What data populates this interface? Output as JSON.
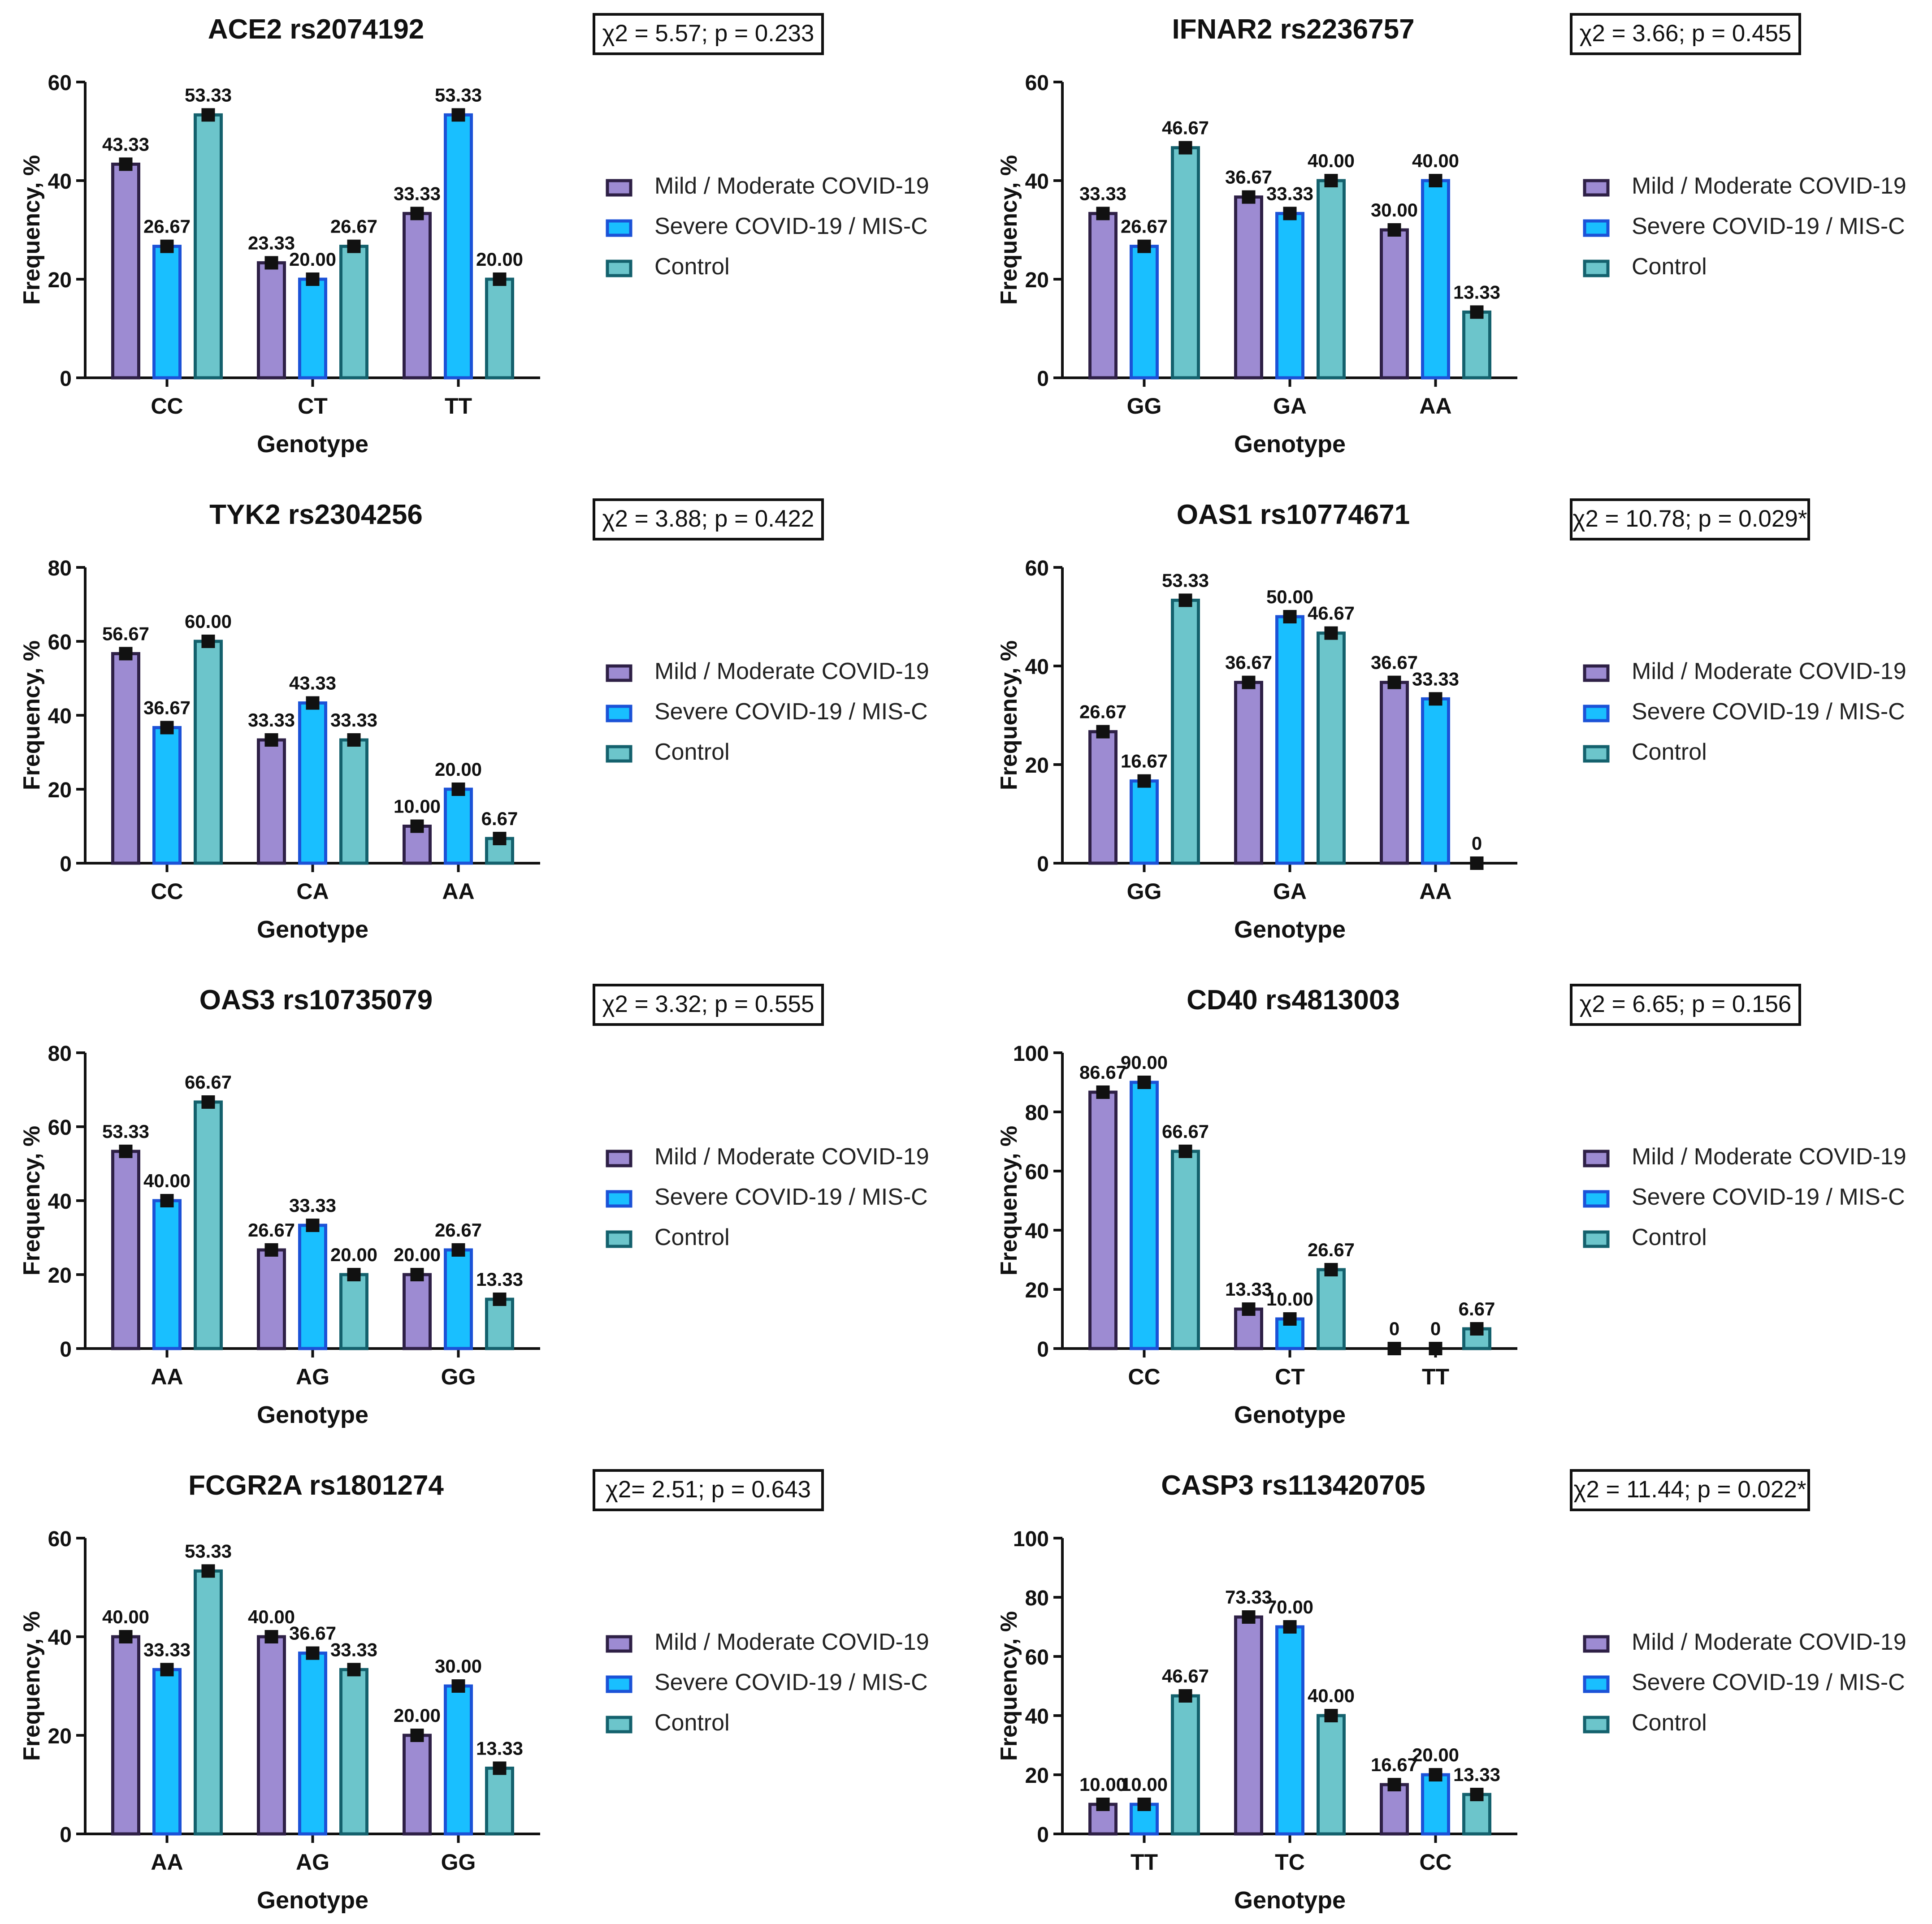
{
  "legend_labels": [
    "Mild / Moderate COVID-19",
    "Severe COVID-19 / MIS-C",
    "Control"
  ],
  "colors": {
    "mild_fill": "#9D8BD2",
    "mild_stroke": "#2E2046",
    "severe_fill": "#19BFFF",
    "severe_stroke": "#1B52D7",
    "control_fill": "#6CC5CB",
    "control_stroke": "#14616D",
    "axis": "#111111",
    "text": "#111111"
  },
  "chart_data": [
    {
      "type": "bar",
      "title": "ACE2 rs2074192",
      "stat": "χ2 = 5.57; p = 0.233",
      "xlabel": "Genotype",
      "ylabel": "Frequency, %",
      "ylim": [
        0,
        60
      ],
      "yticks": [
        "0",
        "20",
        "40",
        "60"
      ],
      "categories": [
        "CC",
        "CT",
        "TT"
      ],
      "series": [
        {
          "name": "Mild / Moderate COVID-19",
          "values": [
            43.33,
            23.33,
            33.33
          ],
          "labels": [
            "43.33",
            "23.33",
            "33.33"
          ]
        },
        {
          "name": "Severe COVID-19 / MIS-C",
          "values": [
            26.67,
            20.0,
            53.33
          ],
          "labels": [
            "26.67",
            "20.00",
            "53.33"
          ]
        },
        {
          "name": "Control",
          "values": [
            53.33,
            26.67,
            20.0
          ],
          "labels": [
            "53.33",
            "26.67",
            "20.00"
          ]
        }
      ]
    },
    {
      "type": "bar",
      "title": "IFNAR2 rs2236757",
      "stat": "χ2 = 3.66; p = 0.455",
      "xlabel": "Genotype",
      "ylabel": "Frequency, %",
      "ylim": [
        0,
        60
      ],
      "yticks": [
        "0",
        "20",
        "40",
        "60"
      ],
      "categories": [
        "GG",
        "GA",
        "AA"
      ],
      "series": [
        {
          "name": "Mild / Moderate COVID-19",
          "values": [
            33.33,
            36.67,
            30.0
          ],
          "labels": [
            "33.33",
            "36.67",
            "30.00"
          ]
        },
        {
          "name": "Severe COVID-19 / MIS-C",
          "values": [
            26.67,
            33.33,
            40.0
          ],
          "labels": [
            "26.67",
            "33.33",
            "40.00"
          ]
        },
        {
          "name": "Control",
          "values": [
            46.67,
            40.0,
            13.33
          ],
          "labels": [
            "46.67",
            "40.00",
            "13.33"
          ]
        }
      ]
    },
    {
      "type": "bar",
      "title": "TYK2 rs2304256",
      "stat": "χ2 = 3.88; p = 0.422",
      "xlabel": "Genotype",
      "ylabel": "Frequency, %",
      "ylim": [
        0,
        80
      ],
      "yticks": [
        "0",
        "20",
        "40",
        "60",
        "80"
      ],
      "categories": [
        "CC",
        "CA",
        "AA"
      ],
      "series": [
        {
          "name": "Mild / Moderate COVID-19",
          "values": [
            56.67,
            33.33,
            10.0
          ],
          "labels": [
            "56.67",
            "33.33",
            "10.00"
          ]
        },
        {
          "name": "Severe COVID-19 / MIS-C",
          "values": [
            36.67,
            43.33,
            20.0
          ],
          "labels": [
            "36.67",
            "43.33",
            "20.00"
          ]
        },
        {
          "name": "Control",
          "values": [
            60.0,
            33.33,
            6.67
          ],
          "labels": [
            "60.00",
            "33.33",
            "6.67"
          ]
        }
      ]
    },
    {
      "type": "bar",
      "title": "OAS1 rs10774671",
      "stat": "χ2 = 10.78; p = 0.029*",
      "xlabel": "Genotype",
      "ylabel": "Frequency, %",
      "ylim": [
        0,
        60
      ],
      "yticks": [
        "0",
        "20",
        "40",
        "60"
      ],
      "categories": [
        "GG",
        "GA",
        "AA"
      ],
      "series": [
        {
          "name": "Mild / Moderate COVID-19",
          "values": [
            26.67,
            36.67,
            36.67
          ],
          "labels": [
            "26.67",
            "36.67",
            "36.67"
          ]
        },
        {
          "name": "Severe COVID-19 / MIS-C",
          "values": [
            16.67,
            50.0,
            33.33
          ],
          "labels": [
            "16.67",
            "50.00",
            "33.33"
          ]
        },
        {
          "name": "Control",
          "values": [
            53.33,
            46.67,
            0
          ],
          "labels": [
            "53.33",
            "46.67",
            "0"
          ]
        }
      ]
    },
    {
      "type": "bar",
      "title": "OAS3 rs10735079",
      "stat": "χ2 = 3.32; p = 0.555",
      "xlabel": "Genotype",
      "ylabel": "Frequency, %",
      "ylim": [
        0,
        80
      ],
      "yticks": [
        "0",
        "20",
        "40",
        "60",
        "80"
      ],
      "categories": [
        "AA",
        "AG",
        "GG"
      ],
      "series": [
        {
          "name": "Mild / Moderate COVID-19",
          "values": [
            53.33,
            26.67,
            20.0
          ],
          "labels": [
            "53.33",
            "26.67",
            "20.00"
          ]
        },
        {
          "name": "Severe COVID-19 / MIS-C",
          "values": [
            40.0,
            33.33,
            26.67
          ],
          "labels": [
            "40.00",
            "33.33",
            "26.67"
          ]
        },
        {
          "name": "Control",
          "values": [
            66.67,
            20.0,
            13.33
          ],
          "labels": [
            "66.67",
            "20.00",
            "13.33"
          ]
        }
      ]
    },
    {
      "type": "bar",
      "title": "CD40 rs4813003",
      "stat": "χ2 = 6.65; p = 0.156",
      "xlabel": "Genotype",
      "ylabel": "Frequency, %",
      "ylim": [
        0,
        100
      ],
      "yticks": [
        "0",
        "20",
        "40",
        "60",
        "80",
        "100"
      ],
      "categories": [
        "CC",
        "CT",
        "TT"
      ],
      "series": [
        {
          "name": "Mild / Moderate COVID-19",
          "values": [
            86.67,
            13.33,
            0
          ],
          "labels": [
            "86.67",
            "13.33",
            "0"
          ]
        },
        {
          "name": "Severe COVID-19 / MIS-C",
          "values": [
            90.0,
            10.0,
            0
          ],
          "labels": [
            "90.00",
            "10.00",
            "0"
          ]
        },
        {
          "name": "Control",
          "values": [
            66.67,
            26.67,
            6.67
          ],
          "labels": [
            "66.67",
            "26.67",
            "6.67"
          ]
        }
      ]
    },
    {
      "type": "bar",
      "title": "FCGR2A rs1801274",
      "stat": "χ2= 2.51; p = 0.643",
      "xlabel": "Genotype",
      "ylabel": "Frequency, %",
      "ylim": [
        0,
        60
      ],
      "yticks": [
        "0",
        "20",
        "40",
        "60"
      ],
      "categories": [
        "AA",
        "AG",
        "GG"
      ],
      "series": [
        {
          "name": "Mild / Moderate COVID-19",
          "values": [
            40.0,
            40.0,
            20.0
          ],
          "labels": [
            "40.00",
            "40.00",
            "20.00"
          ]
        },
        {
          "name": "Severe COVID-19 / MIS-C",
          "values": [
            33.33,
            36.67,
            30.0
          ],
          "labels": [
            "33.33",
            "36.67",
            "30.00"
          ]
        },
        {
          "name": "Control",
          "values": [
            53.33,
            33.33,
            13.33
          ],
          "labels": [
            "53.33",
            "33.33",
            "13.33"
          ]
        }
      ]
    },
    {
      "type": "bar",
      "title": "CASP3 rs113420705",
      "stat": "χ2 = 11.44; p = 0.022*",
      "xlabel": "Genotype",
      "ylabel": "Frequency, %",
      "ylim": [
        0,
        100
      ],
      "yticks": [
        "0",
        "20",
        "40",
        "60",
        "80",
        "100"
      ],
      "categories": [
        "TT",
        "TC",
        "CC"
      ],
      "series": [
        {
          "name": "Mild / Moderate COVID-19",
          "values": [
            10.0,
            73.33,
            16.67
          ],
          "labels": [
            "10.00",
            "73.33",
            "16.67"
          ]
        },
        {
          "name": "Severe COVID-19 / MIS-C",
          "values": [
            10.0,
            70.0,
            20.0
          ],
          "labels": [
            "10.00",
            "70.00",
            "20.00"
          ]
        },
        {
          "name": "Control",
          "values": [
            46.67,
            40.0,
            13.33
          ],
          "labels": [
            "46.67",
            "40.00",
            "13.33"
          ]
        }
      ]
    }
  ]
}
